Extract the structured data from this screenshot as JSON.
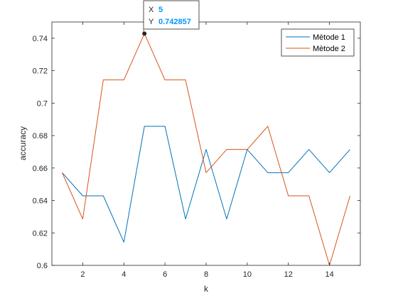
{
  "chart_data": {
    "type": "line",
    "title": "",
    "xlabel": "k",
    "ylabel": "accuracy",
    "xlim": [
      0.5,
      15.5
    ],
    "ylim": [
      0.6,
      0.75
    ],
    "xticks": [
      2,
      4,
      6,
      8,
      10,
      12,
      14
    ],
    "yticks": [
      0.6,
      0.62,
      0.64,
      0.66,
      0.68,
      0.7,
      0.72,
      0.74
    ],
    "ytick_labels": [
      "0.6",
      "0.62",
      "0.64",
      "0.66",
      "0.68",
      "0.7",
      "0.72",
      "0.74"
    ],
    "grid": false,
    "legend_position": "top-right",
    "x": [
      1,
      2,
      3,
      4,
      5,
      6,
      7,
      8,
      9,
      10,
      11,
      12,
      13,
      14,
      15
    ],
    "series": [
      {
        "name": "Mètode 1",
        "color": "#0072bd",
        "values": [
          0.657143,
          0.642857,
          0.642857,
          0.614286,
          0.685714,
          0.685714,
          0.628571,
          0.671429,
          0.628571,
          0.671429,
          0.657143,
          0.657143,
          0.671429,
          0.657143,
          0.671429
        ]
      },
      {
        "name": "Mètode 2",
        "color": "#d95319",
        "values": [
          0.657143,
          0.628571,
          0.714286,
          0.714286,
          0.742857,
          0.714286,
          0.714286,
          0.657143,
          0.671429,
          0.671429,
          0.685714,
          0.642857,
          0.642857,
          0.6,
          0.642857
        ]
      }
    ],
    "datatip": {
      "x_label": "X",
      "x_value": "5",
      "y_label": "Y",
      "y_value": "0.742857",
      "x": 5,
      "y": 0.742857,
      "value_color": "#0096ff"
    }
  }
}
